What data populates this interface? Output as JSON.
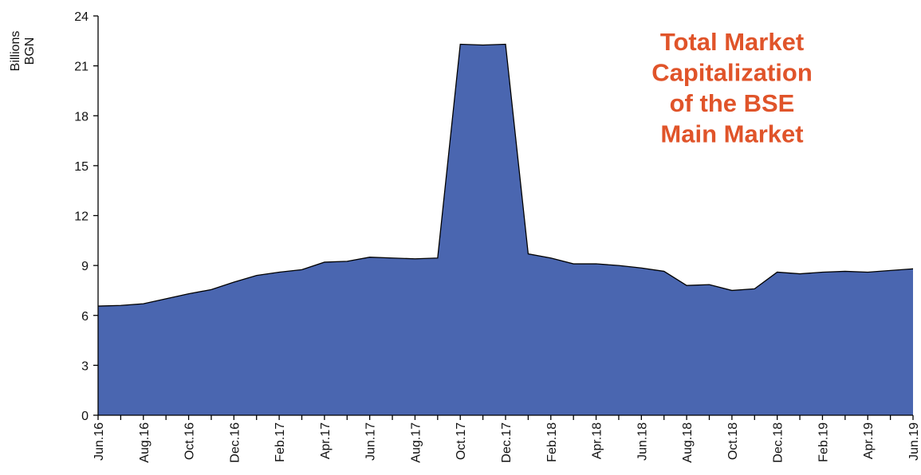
{
  "chart_data": {
    "type": "area",
    "title": [
      "Total Market",
      "Capitalization",
      "of the BSE",
      "Main Market"
    ],
    "y_label": [
      "Billions",
      "BGN"
    ],
    "categories": [
      "Jun.16",
      null,
      "Aug.16",
      null,
      "Oct.16",
      null,
      "Dec.16",
      null,
      "Feb.17",
      null,
      "Apr.17",
      null,
      "Jun.17",
      null,
      "Aug.17",
      null,
      "Oct.17",
      null,
      "Dec.17",
      null,
      "Feb.18",
      null,
      "Apr.18",
      null,
      "Jun.18",
      null,
      "Aug.18",
      null,
      "Oct.18",
      null,
      "Dec.18",
      null,
      "Feb.19",
      null,
      "Apr.19",
      null,
      "Jun.19"
    ],
    "values": [
      6.56,
      6.6,
      6.7,
      7.0,
      7.3,
      7.55,
      8.0,
      8.4,
      8.6,
      8.75,
      9.2,
      9.25,
      9.5,
      9.45,
      9.4,
      9.45,
      22.3,
      22.25,
      22.3,
      9.7,
      9.45,
      9.1,
      9.1,
      9.0,
      8.85,
      8.65,
      7.8,
      7.85,
      7.5,
      7.6,
      8.6,
      8.5,
      8.6,
      8.65,
      8.6,
      8.7,
      8.8
    ],
    "color": "#4a66b0",
    "title_color": "#e0542a",
    "ylim": [
      0,
      24
    ],
    "yticks": [
      0,
      3,
      6,
      9,
      12,
      15,
      18,
      21,
      24
    ],
    "grid": false
  }
}
